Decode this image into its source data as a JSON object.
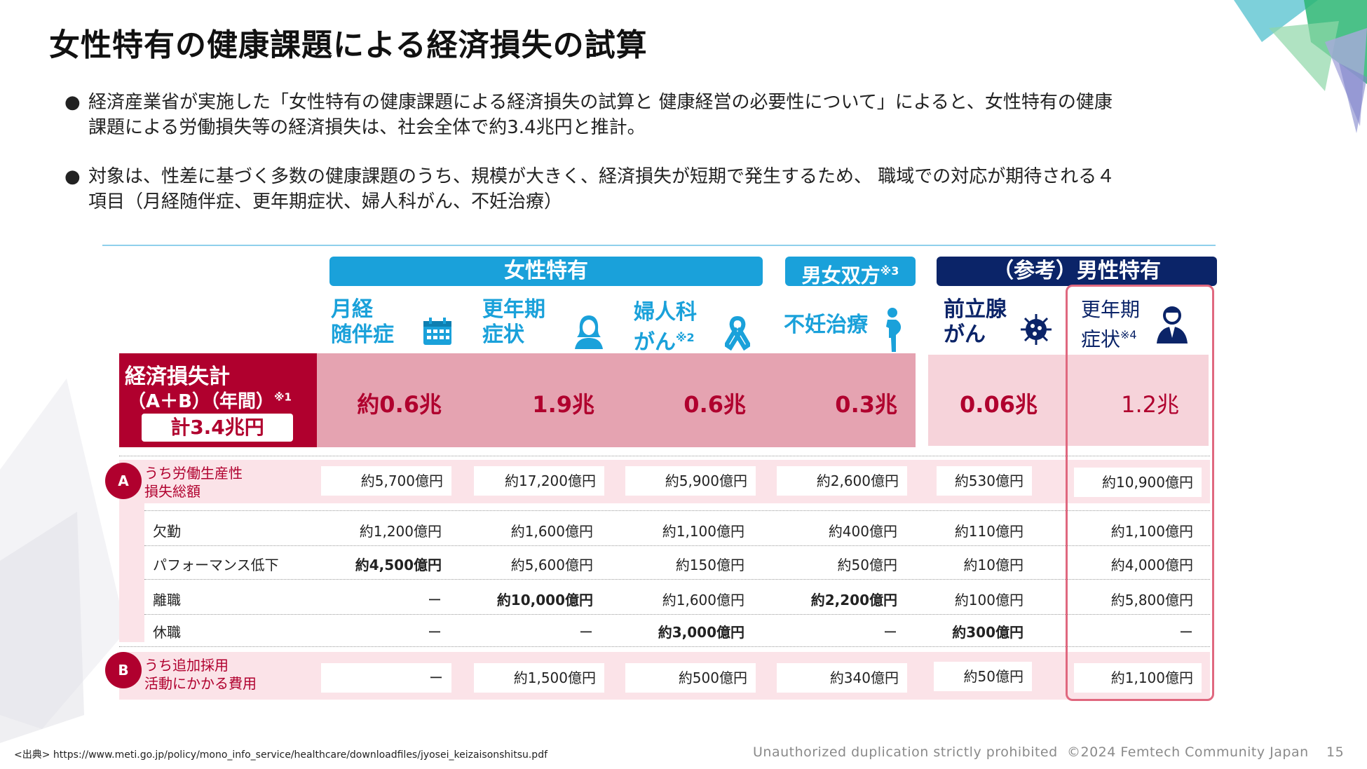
{
  "page": {
    "title": "女性特有の健康課題による経済損失の試算",
    "bullets": [
      {
        "line1": "経済産業省が実施した「女性特有の健康課題による経済損失の試算と 健康経営の必要性について」によると、女性特有の健康",
        "line2": "課題による労働損失等の経済損失は、社会全体で約3.4兆円と推計。"
      },
      {
        "line1": "対象は、性差に基づく多数の健康課題のうち、規模が大きく、経済損失が短期で発生するため、 職域での対応が期待される４",
        "line2": "項目（月経随伴症、更年期症状、婦人科がん、不妊治療）"
      }
    ],
    "bullet_symbol": "●",
    "page_number": "15",
    "notice": "Unauthorized duplication strictly prohibited",
    "copyright": "©2024 Femtech Community Japan",
    "source_label": "<出典>",
    "source_url": "https://www.meti.go.jp/policy/mono_info_service/healthcare/downloadfiles/jyosei_keizaisonshitsu.pdf"
  },
  "table": {
    "categories": {
      "female": "女性特有",
      "both": "男女双方",
      "both_note": "※3",
      "male": "（参考）男性特有"
    },
    "columns": [
      {
        "line1": "月経",
        "line2": "随伴症",
        "note": "",
        "icon": "calendar-icon"
      },
      {
        "line1": "更年期",
        "line2": "症状",
        "note": "",
        "icon": "woman-icon"
      },
      {
        "line1": "婦人科",
        "line2": "がん",
        "note": "※2",
        "icon": "ribbon-icon"
      },
      {
        "line1": "不妊治療",
        "line2": "",
        "note": "",
        "icon": "pregnant-icon"
      },
      {
        "line1": "前立腺",
        "line2": "がん",
        "note": "",
        "icon": "virus-icon"
      },
      {
        "line1": "更年期",
        "line2": "症状",
        "note": "※4",
        "icon": "man-icon"
      }
    ],
    "total": {
      "label1": "経済損失計",
      "label2": "（A＋B）（年間）",
      "label2_note": "※1",
      "pill": "計3.4兆円",
      "values": [
        "約0.6兆",
        "1.9兆",
        "0.6兆",
        "0.3兆",
        "0.06兆",
        "1.2兆"
      ]
    },
    "rowA": {
      "badge": "A",
      "label1": "うち労働生産性",
      "label2": "損失総額",
      "values": [
        "約5,700億円",
        "約17,200億円",
        "約5,900億円",
        "約2,600億円",
        "約530億円",
        "約10,900億円"
      ]
    },
    "subrows": [
      {
        "label": "欠勤",
        "values": [
          "約1,200億円",
          "約1,600億円",
          "約1,100億円",
          "約400億円",
          "約110億円",
          "約1,100億円"
        ],
        "bold": [
          false,
          false,
          false,
          false,
          false,
          false
        ]
      },
      {
        "label": "パフォーマンス低下",
        "values": [
          "約4,500億円",
          "約5,600億円",
          "約150億円",
          "約50億円",
          "約10億円",
          "約4,000億円"
        ],
        "bold": [
          true,
          false,
          false,
          false,
          false,
          false
        ]
      },
      {
        "label": "離職",
        "values": [
          "ー",
          "約10,000億円",
          "約1,600億円",
          "約2,200億円",
          "約100億円",
          "約5,800億円"
        ],
        "bold": [
          false,
          true,
          false,
          true,
          false,
          false
        ]
      },
      {
        "label": "休職",
        "values": [
          "ー",
          "ー",
          "約3,000億円",
          "ー",
          "約300億円",
          "ー"
        ],
        "bold": [
          false,
          false,
          true,
          false,
          true,
          false
        ]
      }
    ],
    "rowB": {
      "badge": "B",
      "label1": "うち追加採用",
      "label2": "活動にかかる費用",
      "values": [
        "ー",
        "約1,500億円",
        "約500億円",
        "約340億円",
        "約50億円",
        "約1,100億円"
      ]
    },
    "colors": {
      "accent_blue": "#1aa1da",
      "navy": "#0b2468",
      "crimson": "#b0002e",
      "pink_band": "#e5a3b1",
      "light_pink": "#f6d3da"
    }
  }
}
